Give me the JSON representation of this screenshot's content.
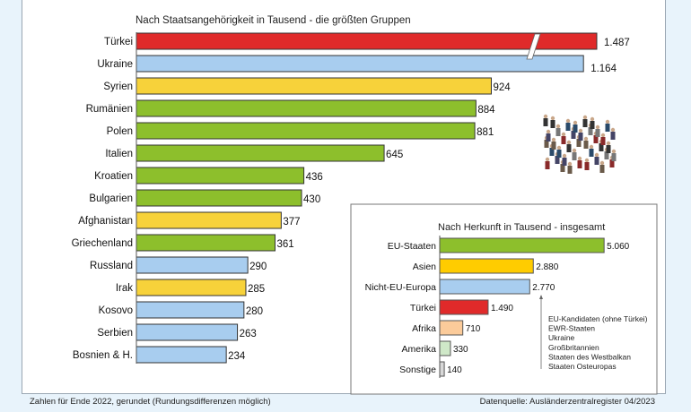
{
  "chart_data": [
    {
      "type": "bar",
      "orientation": "horizontal",
      "title": "Nach Staatsangehörigkeit in Tausend - die größten Gruppen",
      "categories": [
        "Türkei",
        "Ukraine",
        "Syrien",
        "Rumänien",
        "Polen",
        "Italien",
        "Kroatien",
        "Bulgarien",
        "Afghanistan",
        "Griechenland",
        "Russland",
        "Irak",
        "Kosovo",
        "Serbien",
        "Bosnien & H."
      ],
      "values": [
        1487,
        1164,
        924,
        884,
        881,
        645,
        436,
        430,
        377,
        361,
        290,
        285,
        280,
        263,
        234
      ],
      "value_labels": [
        "1.487",
        "1.164",
        "924",
        "884",
        "881",
        "645",
        "436",
        "430",
        "377",
        "361",
        "290",
        "285",
        "280",
        "263",
        "234"
      ],
      "colors": [
        "#e02a2a",
        "#a8cdef",
        "#f7d23a",
        "#8dbf2c",
        "#8dbf2c",
        "#8dbf2c",
        "#8dbf2c",
        "#8dbf2c",
        "#f7d23a",
        "#8dbf2c",
        "#a8cdef",
        "#f7d23a",
        "#a8cdef",
        "#a8cdef",
        "#a8cdef"
      ],
      "axis_break": "Türkei",
      "grid": false
    },
    {
      "type": "bar",
      "orientation": "horizontal",
      "title": "Nach Herkunft in Tausend - insgesamt",
      "categories": [
        "EU-Staaten",
        "Asien",
        "Nicht-EU-Europa",
        "Türkei",
        "Afrika",
        "Amerika",
        "Sonstige"
      ],
      "values": [
        5060,
        2880,
        2770,
        1490,
        710,
        330,
        140
      ],
      "value_labels": [
        "5.060",
        "2.880",
        "2.770",
        "1.490",
        "710",
        "330",
        "140"
      ],
      "colors": [
        "#8dbf2c",
        "#ffcc00",
        "#a8cdef",
        "#e02a2a",
        "#fbcb9a",
        "#cfe8c8",
        "#d8d8d8"
      ],
      "annotation": [
        "EU-Kandidaten (ohne Türkei)",
        "EWR-Staaten",
        "Ukraine",
        "Großbritannien",
        "Staaten des Westbalkan",
        "Staaten Osteuropas"
      ],
      "grid": false
    }
  ],
  "footer": {
    "note": "Zahlen für Ende 2022, gerundet (Rundungsdifferenzen möglich)",
    "source": "Datenquelle: Ausländerzentralregister 04/2023"
  },
  "image": {
    "icon": "crowd-of-people-icon"
  }
}
